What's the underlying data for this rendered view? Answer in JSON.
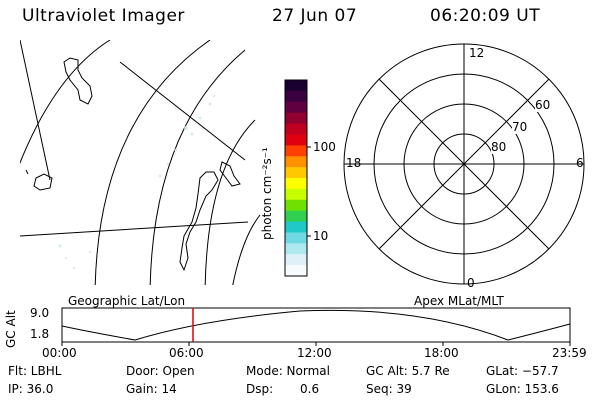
{
  "header": {
    "instrument": "Ultraviolet Imager",
    "date": "27 Jun 07",
    "time": "06:20:09 UT"
  },
  "colorbar": {
    "label": "photon cm⁻²s⁻¹",
    "ticks": [
      "100",
      "10"
    ],
    "colors": [
      "#1a0030",
      "#3a0040",
      "#600040",
      "#900030",
      "#c00020",
      "#e00010",
      "#ff4000",
      "#ff9000",
      "#ffc800",
      "#ffff00",
      "#c8ff00",
      "#70e000",
      "#30d050",
      "#20c8c8",
      "#70d8e0",
      "#b0e8f0",
      "#e0f0f8",
      "#f8fbfd"
    ]
  },
  "polar_plot": {
    "lat_labels": [
      "60",
      "70",
      "80"
    ],
    "mlt_labels": {
      "top": "12",
      "left": "18",
      "right": "6",
      "bottom": "0"
    }
  },
  "timeline": {
    "left_label": "Geographic Lat/Lon",
    "right_label": "Apex MLat/MLT",
    "axis_label": "GC Alt",
    "y_ticks": [
      "9.0",
      "1.8"
    ],
    "x_ticks": [
      "00:00",
      "06:00",
      "12:00",
      "18:00",
      "23:59"
    ],
    "marker_color": "#e00000"
  },
  "status": {
    "flt": "Flt: LBHL",
    "ip": "IP: 36.0",
    "door": "Door: Open",
    "gain": "Gain: 14",
    "mode": "Mode: Normal",
    "dsp_label": "Dsp:",
    "dsp_value": "0.6",
    "gc_alt": "GC Alt: 5.7 Re",
    "seq": "Seq: 39",
    "glat": "GLat: −57.7",
    "glon": "GLon: 153.6"
  }
}
